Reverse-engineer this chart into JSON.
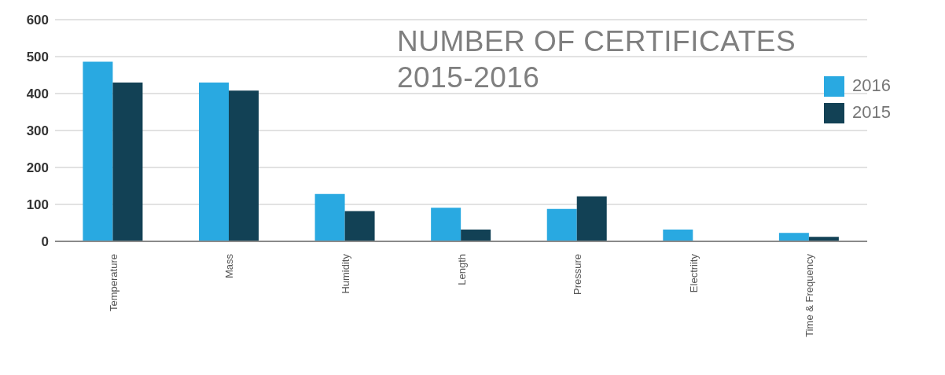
{
  "chart_data": {
    "type": "bar",
    "title": "NUMBER OF CERTIFICATES 2015-2016",
    "categories": [
      "Temperature",
      "Mass",
      "Humidity",
      "Length",
      "Pressure",
      "Electriity",
      "Time & Frequency"
    ],
    "series": [
      {
        "name": "2016",
        "color": "#29a9e1",
        "values": [
          486,
          430,
          128,
          91,
          88,
          32,
          23
        ]
      },
      {
        "name": "2015",
        "color": "#124155",
        "values": [
          430,
          408,
          82,
          32,
          122,
          null,
          12
        ]
      }
    ],
    "ylim": [
      0,
      600
    ],
    "yticks": [
      0,
      100,
      200,
      300,
      400,
      500,
      600
    ],
    "grid": "y",
    "legend": "top right"
  }
}
